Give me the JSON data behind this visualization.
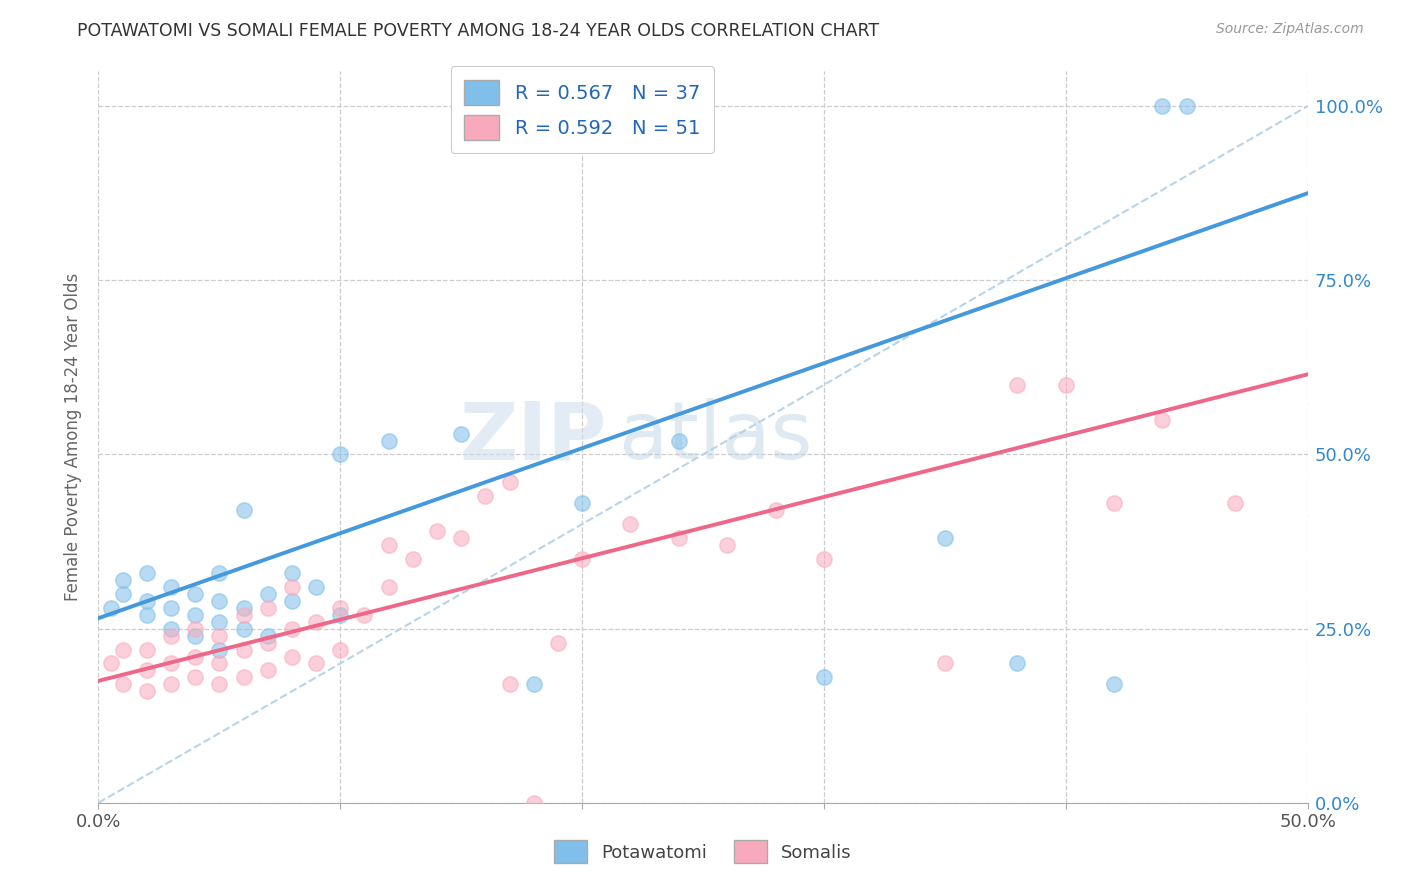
{
  "title": "POTAWATOMI VS SOMALI FEMALE POVERTY AMONG 18-24 YEAR OLDS CORRELATION CHART",
  "source": "Source: ZipAtlas.com",
  "ylabel": "Female Poverty Among 18-24 Year Olds",
  "xlim": [
    0.0,
    0.5
  ],
  "ylim": [
    0.0,
    1.05
  ],
  "right_yticklabels": [
    "0.0%",
    "25.0%",
    "50.0%",
    "75.0%",
    "100.0%"
  ],
  "right_ytick_vals": [
    0.0,
    0.25,
    0.5,
    0.75,
    1.0
  ],
  "xtick_vals": [
    0.0,
    0.1,
    0.2,
    0.3,
    0.4,
    0.5
  ],
  "xticklabels": [
    "0.0%",
    "",
    "",
    "",
    "",
    "50.0%"
  ],
  "potawatomi_R": 0.567,
  "potawatomi_N": 37,
  "somali_R": 0.592,
  "somali_N": 51,
  "potawatomi_color": "#7fbfea",
  "somali_color": "#f8aabc",
  "trend_blue": "#4499dd",
  "trend_pink": "#ee6688",
  "trend_dashed_color": "#b8d4ea",
  "watermark_zip": "ZIP",
  "watermark_atlas": "atlas",
  "background_color": "#ffffff",
  "pot_trend_slope": 1.22,
  "pot_trend_intercept": 0.265,
  "som_trend_slope": 0.88,
  "som_trend_intercept": 0.175,
  "potawatomi_x": [
    0.005,
    0.01,
    0.01,
    0.02,
    0.02,
    0.02,
    0.03,
    0.03,
    0.03,
    0.04,
    0.04,
    0.04,
    0.05,
    0.05,
    0.05,
    0.05,
    0.06,
    0.06,
    0.06,
    0.07,
    0.07,
    0.08,
    0.08,
    0.09,
    0.1,
    0.1,
    0.12,
    0.15,
    0.18,
    0.2,
    0.24,
    0.3,
    0.35,
    0.38,
    0.42,
    0.44,
    0.45
  ],
  "potawatomi_y": [
    0.28,
    0.3,
    0.32,
    0.27,
    0.29,
    0.33,
    0.25,
    0.28,
    0.31,
    0.24,
    0.27,
    0.3,
    0.22,
    0.26,
    0.29,
    0.33,
    0.25,
    0.28,
    0.42,
    0.24,
    0.3,
    0.29,
    0.33,
    0.31,
    0.27,
    0.5,
    0.52,
    0.53,
    0.17,
    0.43,
    0.52,
    0.18,
    0.38,
    0.2,
    0.17,
    1.0,
    1.0
  ],
  "somali_x": [
    0.005,
    0.01,
    0.01,
    0.02,
    0.02,
    0.02,
    0.03,
    0.03,
    0.03,
    0.04,
    0.04,
    0.04,
    0.05,
    0.05,
    0.05,
    0.06,
    0.06,
    0.06,
    0.07,
    0.07,
    0.07,
    0.08,
    0.08,
    0.08,
    0.09,
    0.09,
    0.1,
    0.1,
    0.11,
    0.12,
    0.12,
    0.13,
    0.14,
    0.15,
    0.16,
    0.17,
    0.18,
    0.19,
    0.2,
    0.22,
    0.24,
    0.26,
    0.28,
    0.3,
    0.35,
    0.38,
    0.4,
    0.42,
    0.44,
    0.47,
    0.17
  ],
  "somali_y": [
    0.2,
    0.17,
    0.22,
    0.16,
    0.19,
    0.22,
    0.17,
    0.2,
    0.24,
    0.18,
    0.21,
    0.25,
    0.17,
    0.2,
    0.24,
    0.18,
    0.22,
    0.27,
    0.19,
    0.23,
    0.28,
    0.21,
    0.25,
    0.31,
    0.2,
    0.26,
    0.22,
    0.28,
    0.27,
    0.31,
    0.37,
    0.35,
    0.39,
    0.38,
    0.44,
    0.17,
    0.0,
    0.23,
    0.35,
    0.4,
    0.38,
    0.37,
    0.42,
    0.35,
    0.2,
    0.6,
    0.6,
    0.43,
    0.55,
    0.43,
    0.46
  ]
}
